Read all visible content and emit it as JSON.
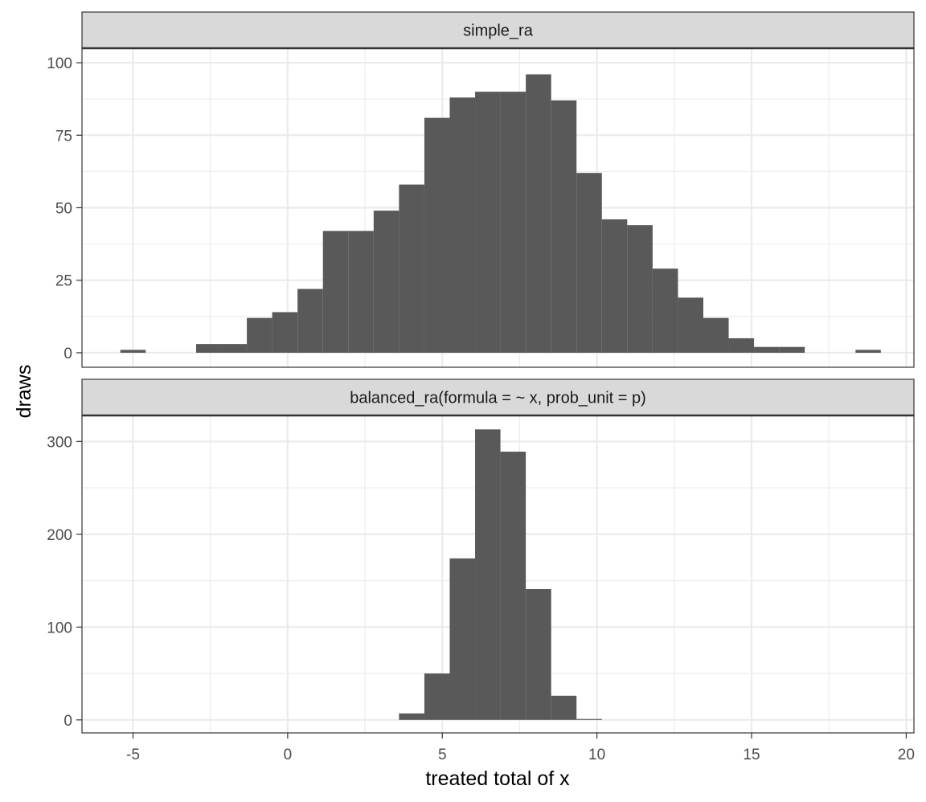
{
  "chart_data": {
    "type": "bar",
    "xlabel": "treated total of x",
    "ylabel": "draws",
    "xlim": [
      -6.65,
      20.25
    ],
    "x_ticks": [
      -5,
      0,
      5,
      10,
      15,
      20
    ],
    "x_tick_labels": [
      "-5",
      "0",
      "5",
      "10",
      "15",
      "20"
    ],
    "bin_width": 0.82,
    "colors": {
      "bar": "#595959",
      "strip": "#d9d9d9",
      "grid": "#ebebeb",
      "panel_border": "#333333",
      "axis_text": "#4d4d4d"
    },
    "grid": true,
    "panels": [
      {
        "strip_label": "simple_ra",
        "ylim": [
          -5,
          105
        ],
        "y_ticks": [
          0,
          25,
          50,
          75,
          100
        ],
        "y_tick_labels": [
          "0",
          "25",
          "50",
          "75",
          "100"
        ],
        "bins": [
          {
            "x": -5.0,
            "y": 1
          },
          {
            "x": -2.55,
            "y": 3
          },
          {
            "x": -1.73,
            "y": 3
          },
          {
            "x": -0.91,
            "y": 12
          },
          {
            "x": -0.09,
            "y": 14
          },
          {
            "x": 0.73,
            "y": 22
          },
          {
            "x": 1.55,
            "y": 42
          },
          {
            "x": 2.37,
            "y": 42
          },
          {
            "x": 3.19,
            "y": 49
          },
          {
            "x": 4.01,
            "y": 58
          },
          {
            "x": 4.83,
            "y": 81
          },
          {
            "x": 5.65,
            "y": 88
          },
          {
            "x": 6.47,
            "y": 90
          },
          {
            "x": 7.29,
            "y": 90
          },
          {
            "x": 8.11,
            "y": 96
          },
          {
            "x": 8.93,
            "y": 87
          },
          {
            "x": 9.75,
            "y": 62
          },
          {
            "x": 10.57,
            "y": 46
          },
          {
            "x": 11.39,
            "y": 44
          },
          {
            "x": 12.21,
            "y": 29
          },
          {
            "x": 13.03,
            "y": 19
          },
          {
            "x": 13.85,
            "y": 12
          },
          {
            "x": 14.67,
            "y": 5
          },
          {
            "x": 15.49,
            "y": 2
          },
          {
            "x": 16.31,
            "y": 2
          },
          {
            "x": 18.77,
            "y": 1
          }
        ]
      },
      {
        "strip_label": "balanced_ra(formula = ~ x, prob_unit = p)",
        "ylim": [
          -14,
          328
        ],
        "y_ticks": [
          0,
          100,
          200,
          300
        ],
        "y_tick_labels": [
          "0",
          "100",
          "200",
          "300"
        ],
        "bins": [
          {
            "x": 4.01,
            "y": 7
          },
          {
            "x": 4.83,
            "y": 50
          },
          {
            "x": 5.65,
            "y": 174
          },
          {
            "x": 6.47,
            "y": 313
          },
          {
            "x": 7.29,
            "y": 289
          },
          {
            "x": 8.11,
            "y": 141
          },
          {
            "x": 8.93,
            "y": 26
          },
          {
            "x": 9.75,
            "y": 1
          }
        ]
      }
    ]
  }
}
